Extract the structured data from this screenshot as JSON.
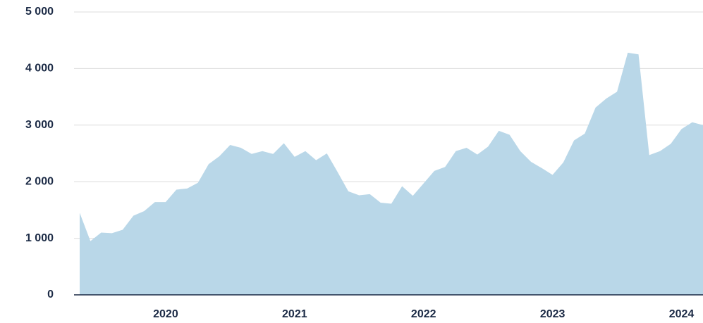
{
  "chart_data": {
    "type": "area",
    "color": "#b9d7e8",
    "categories": [
      null,
      null,
      null,
      null,
      null,
      null,
      null,
      null,
      "2020",
      null,
      null,
      null,
      null,
      null,
      null,
      null,
      null,
      null,
      null,
      null,
      "2021",
      null,
      null,
      null,
      null,
      null,
      null,
      null,
      null,
      null,
      null,
      null,
      "2022",
      null,
      null,
      null,
      null,
      null,
      null,
      null,
      null,
      null,
      null,
      null,
      "2023",
      null,
      null,
      null,
      null,
      null,
      null,
      null,
      null,
      null,
      null,
      null,
      "2024",
      null,
      null
    ],
    "values": [
      1450,
      950,
      1100,
      1090,
      1150,
      1400,
      1480,
      1640,
      1640,
      1860,
      1880,
      1980,
      2310,
      2450,
      2650,
      2600,
      2490,
      2540,
      2490,
      2680,
      2440,
      2540,
      2380,
      2500,
      2170,
      1830,
      1760,
      1780,
      1630,
      1610,
      1920,
      1750,
      1970,
      2190,
      2260,
      2540,
      2600,
      2480,
      2620,
      2900,
      2830,
      2540,
      2350,
      2240,
      2120,
      2340,
      2730,
      2850,
      3310,
      3470,
      3590,
      4280,
      4250,
      2470,
      2540,
      2670,
      2930,
      3050,
      3000
    ],
    "ylim": [
      0,
      5000
    ],
    "yticks": [
      0,
      {
        "value": 1000,
        "label": "1 000"
      },
      {
        "value": 2000,
        "label": "2 000"
      },
      {
        "value": 3000,
        "label": "3 000"
      },
      {
        "value": 4000,
        "label": "4 000"
      },
      {
        "value": 5000,
        "label": "5 000"
      }
    ],
    "grid": true
  }
}
